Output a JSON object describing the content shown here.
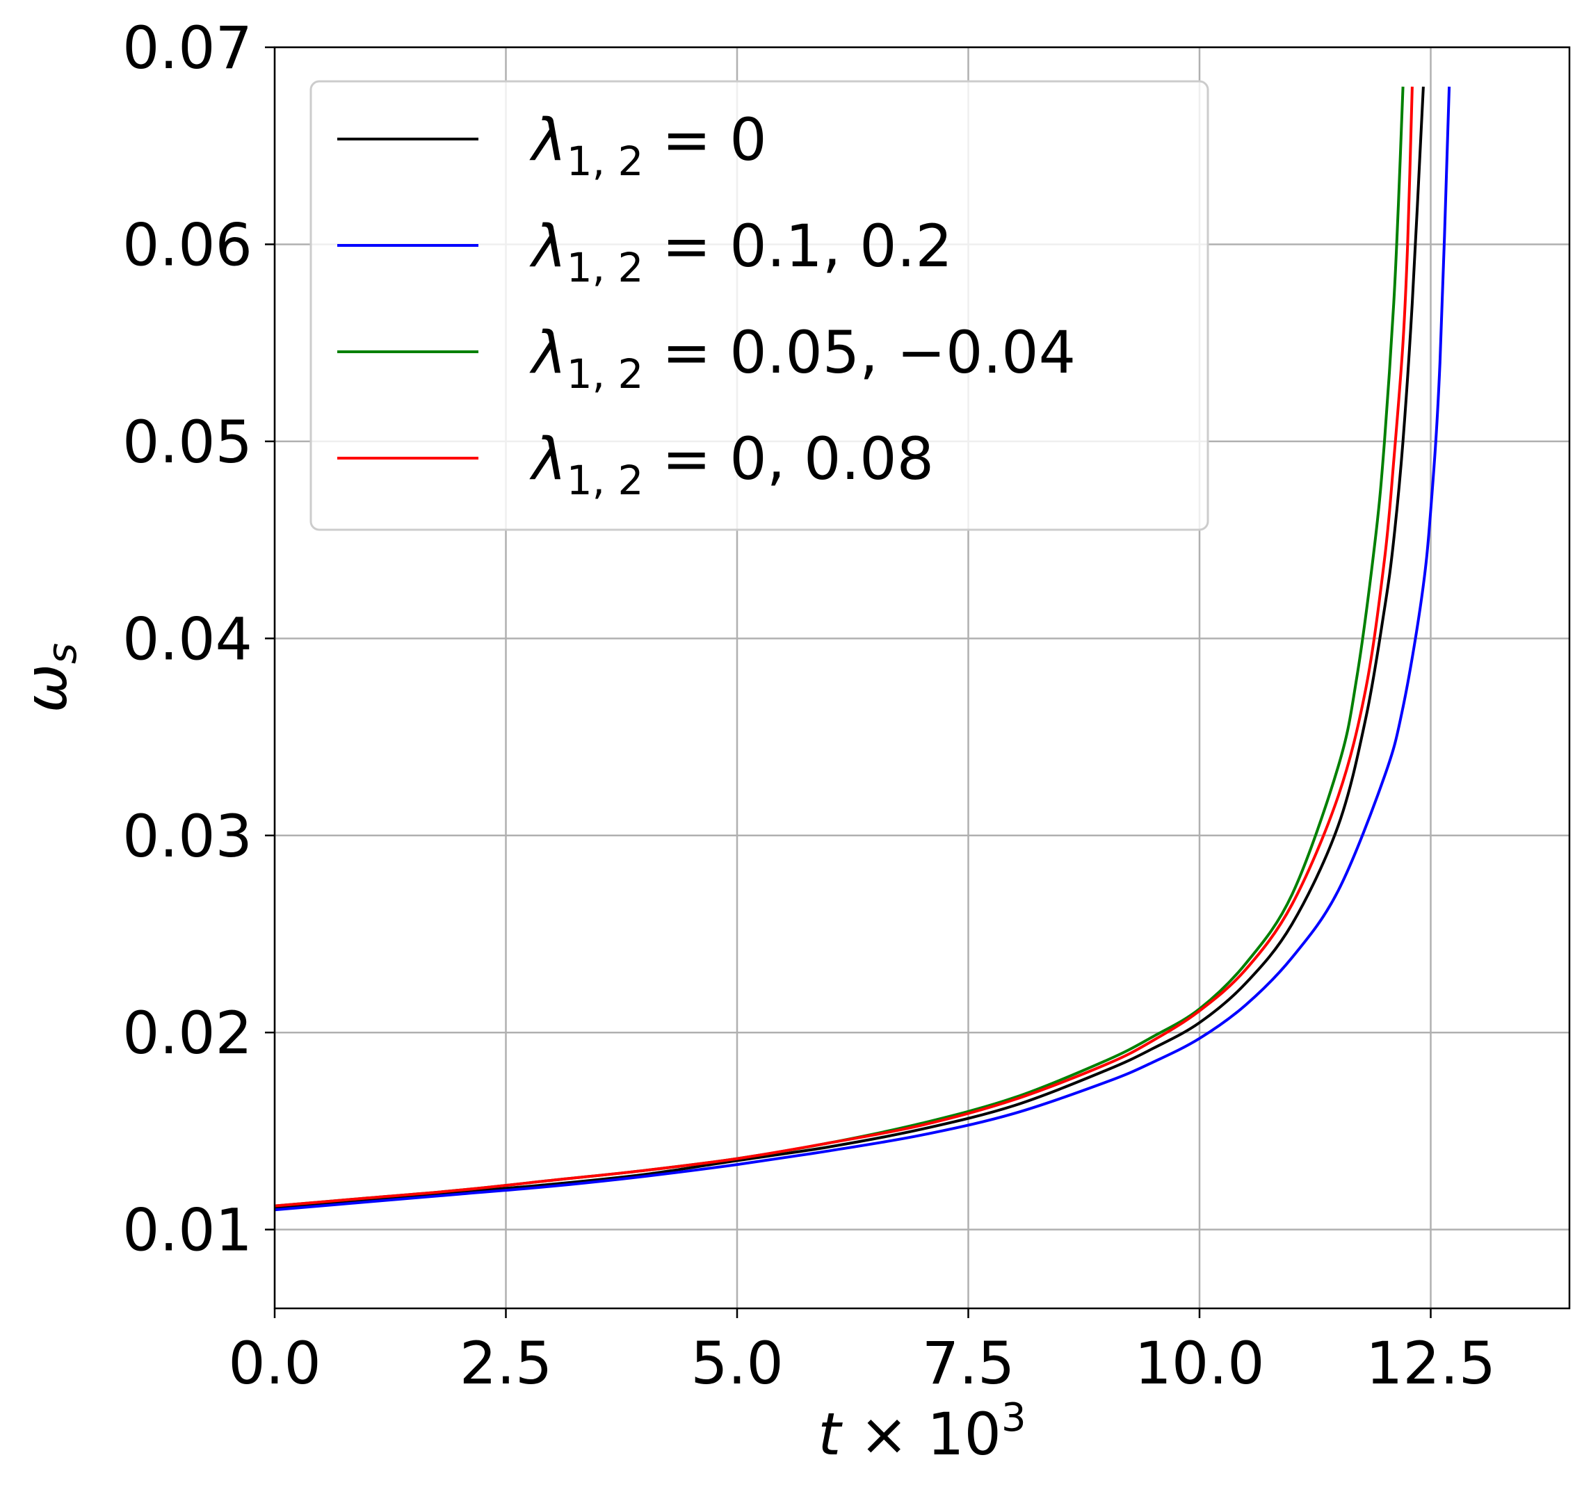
{
  "chart_data": {
    "type": "line",
    "xlabel": "t × 10^3",
    "ylabel": "ω_s",
    "xlim": [
      0,
      14
    ],
    "ylim": [
      0.006,
      0.07
    ],
    "xticks": [
      {
        "value": 0,
        "label": "0.0"
      },
      {
        "value": 2.5,
        "label": "2.5"
      },
      {
        "value": 5,
        "label": "5.0"
      },
      {
        "value": 7.5,
        "label": "7.5"
      },
      {
        "value": 10,
        "label": "10.0"
      },
      {
        "value": 12.5,
        "label": "12.5"
      }
    ],
    "yticks": [
      {
        "value": 0.01,
        "label": "0.01"
      },
      {
        "value": 0.02,
        "label": "0.02"
      },
      {
        "value": 0.03,
        "label": "0.03"
      },
      {
        "value": 0.04,
        "label": "0.04"
      },
      {
        "value": 0.05,
        "label": "0.05"
      },
      {
        "value": 0.06,
        "label": "0.06"
      },
      {
        "value": 0.07,
        "label": "0.07"
      }
    ],
    "grid": true,
    "legend_position": "top-left",
    "series": [
      {
        "name": "λ1,2 = 0",
        "legend": {
          "symbol": "λ",
          "sub": "1, 2",
          "rest": " = 0"
        },
        "color": "#000000",
        "x": [
          0,
          1,
          2,
          3,
          4,
          5,
          6,
          7,
          8,
          9,
          9.5,
          10,
          10.5,
          11,
          11.5,
          11.8,
          12,
          12.1,
          12.2,
          12.3,
          12.42
        ],
        "y": [
          0.0111,
          0.0115,
          0.0119,
          0.0123,
          0.0128,
          0.0135,
          0.0142,
          0.0151,
          0.0163,
          0.0181,
          0.0192,
          0.0205,
          0.0225,
          0.0255,
          0.0305,
          0.036,
          0.0415,
          0.045,
          0.05,
          0.057,
          0.068
        ]
      },
      {
        "name": "λ1,2 = 0.1, 0.2",
        "legend": {
          "symbol": "λ",
          "sub": "1, 2",
          "rest": " = 0.1, 0.2"
        },
        "color": "#0000ff",
        "x": [
          0,
          1,
          2,
          3,
          4,
          5,
          6,
          7,
          8,
          9,
          9.5,
          10,
          10.5,
          11,
          11.5,
          12,
          12.2,
          12.4,
          12.5,
          12.6,
          12.7
        ],
        "y": [
          0.011,
          0.0114,
          0.0118,
          0.0122,
          0.0127,
          0.0133,
          0.014,
          0.0148,
          0.0159,
          0.0175,
          0.0185,
          0.0197,
          0.0214,
          0.0238,
          0.0272,
          0.033,
          0.0365,
          0.042,
          0.0465,
          0.054,
          0.068
        ]
      },
      {
        "name": "λ1,2 = 0.05, −0.04",
        "legend": {
          "symbol": "λ",
          "sub": "1, 2",
          "rest": " = 0.05, −0.04"
        },
        "color": "#008000",
        "x": [
          0,
          1,
          2,
          3,
          4,
          5,
          6,
          7,
          8,
          9,
          9.5,
          10,
          10.5,
          11,
          11.5,
          11.7,
          11.9,
          12,
          12.1,
          12.15,
          12.2
        ],
        "y": [
          0.0112,
          0.0116,
          0.012,
          0.0125,
          0.013,
          0.0136,
          0.0144,
          0.0154,
          0.0167,
          0.0186,
          0.0198,
          0.0212,
          0.0235,
          0.027,
          0.0335,
          0.038,
          0.045,
          0.05,
          0.057,
          0.062,
          0.068
        ]
      },
      {
        "name": "λ1,2 = 0, 0.08",
        "legend": {
          "symbol": "λ",
          "sub": "1, 2",
          "rest": " = 0, 0.08"
        },
        "color": "#ff0000",
        "x": [
          0,
          1,
          2,
          3,
          4,
          5,
          6,
          7,
          8,
          9,
          9.5,
          10,
          10.5,
          11,
          11.5,
          11.8,
          12,
          12.1,
          12.2,
          12.25,
          12.3
        ],
        "y": [
          0.0112,
          0.0116,
          0.012,
          0.0125,
          0.013,
          0.0136,
          0.0144,
          0.0153,
          0.0166,
          0.0184,
          0.0196,
          0.0211,
          0.0232,
          0.0265,
          0.032,
          0.0375,
          0.044,
          0.049,
          0.055,
          0.06,
          0.068
        ]
      }
    ]
  }
}
